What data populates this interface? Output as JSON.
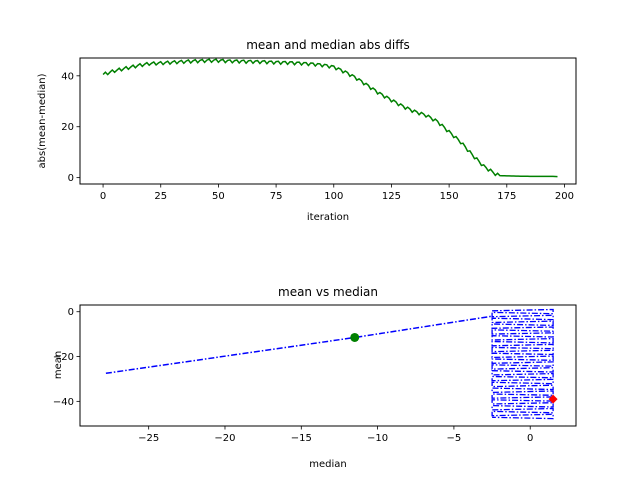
{
  "chart_data": [
    {
      "type": "line",
      "title": "mean and median abs diffs",
      "xlabel": "iteration",
      "ylabel": "abs(mean-median)",
      "xlim": [
        -10,
        205
      ],
      "ylim": [
        -2.5,
        47
      ],
      "xticks": [
        0,
        25,
        50,
        75,
        100,
        125,
        150,
        175,
        200
      ],
      "yticks": [
        0,
        20,
        40
      ],
      "grid": false,
      "series": [
        {
          "color": "#008000",
          "x": [
            0,
            5,
            10,
            15,
            20,
            25,
            30,
            35,
            40,
            45,
            50,
            55,
            60,
            65,
            70,
            75,
            80,
            85,
            90,
            95,
            100,
            105,
            110,
            115,
            120,
            125,
            130,
            135,
            140,
            145,
            150,
            155,
            160,
            165,
            170,
            172,
            175,
            180,
            185,
            190,
            195,
            197
          ],
          "y": [
            40.5,
            42,
            43,
            44,
            44.8,
            45,
            45.3,
            45.6,
            45.8,
            46,
            46,
            45.8,
            45.7,
            45.6,
            45.5,
            45.3,
            45.2,
            45,
            44.7,
            44.3,
            43.5,
            41.5,
            39,
            36,
            33,
            30.5,
            28,
            26,
            24.5,
            22,
            18,
            14,
            9,
            4.5,
            1.5,
            0.8,
            0.7,
            0.6,
            0.5,
            0.5,
            0.5,
            0.4
          ]
        }
      ]
    },
    {
      "type": "scatter",
      "title": "mean vs median",
      "xlabel": "median",
      "ylabel": "mean",
      "xlim": [
        -29.5,
        3
      ],
      "ylim": [
        -51,
        3
      ],
      "xticks": [
        -25,
        -20,
        -15,
        -10,
        -5,
        0
      ],
      "yticks": [
        0,
        -20,
        -40
      ],
      "grid": false,
      "trajectory": {
        "color": "#0000ff",
        "style": "dashdot",
        "diagonal": {
          "x": [
            -27.8,
            -11.5,
            -2.5
          ],
          "y": [
            -27.5,
            -11.5,
            -2
          ]
        },
        "band": {
          "x_left": -2.5,
          "x_right": 1.5,
          "y_bottom": -48,
          "y_top": 1,
          "spacing": 1.3
        }
      },
      "markers": [
        {
          "x": -11.5,
          "y": -11.5,
          "color": "#008000",
          "shape": "circle"
        },
        {
          "x": 1.5,
          "y": -39,
          "color": "#ff0000",
          "shape": "diamond"
        }
      ]
    }
  ]
}
